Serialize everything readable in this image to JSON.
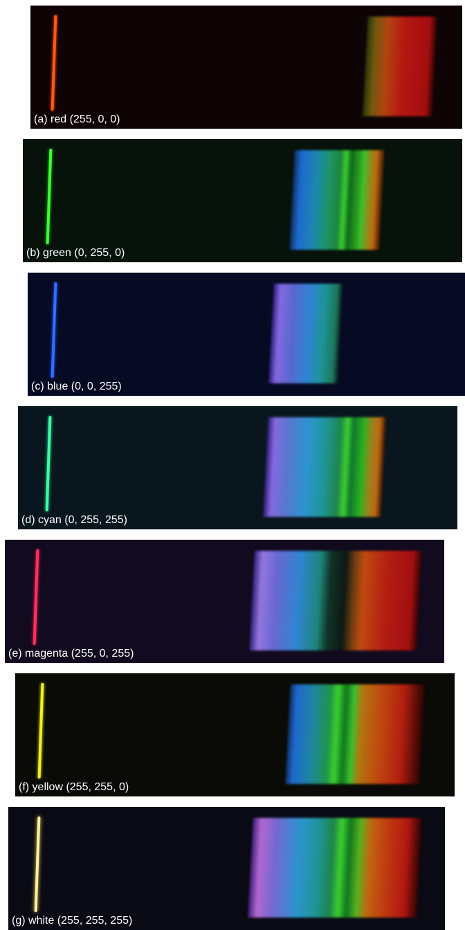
{
  "panels": [
    {
      "label": "(a) red (255, 0, 0)"
    },
    {
      "label": "(b) green (0, 255, 0)"
    },
    {
      "label": "(c) blue (0, 0, 255)"
    },
    {
      "label": "(d) cyan (0, 255, 255)"
    },
    {
      "label": "(e) magenta (255, 0, 255)"
    },
    {
      "label": "(f) yellow (255, 255, 0)"
    },
    {
      "label": "(g) white (255, 255, 255)"
    }
  ]
}
